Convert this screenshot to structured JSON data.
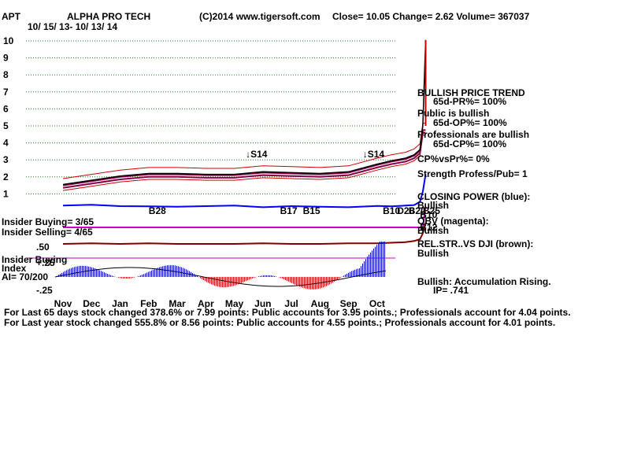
{
  "header": {
    "ticker": "APT",
    "company": "ALPHA PRO TECH",
    "copyright": "(C)2014 www.tigersoft.com",
    "stats": "Close= 10.05 Change= 2.62 Volume= 367037",
    "date_range": "10/ 15/ 13- 10/ 13/ 14"
  },
  "side_panel": [
    "BULLISH PRICE TREND",
    "65d-PR%= 100%",
    "Public is bullish",
    "65d-OP%= 100%",
    "Professionals are bullish",
    "65d-CP%= 100%",
    "CP%vsPr%= 0%",
    "Strength Profess/Pub= 1",
    "CLOSING POWER (blue):",
    "Bullish",
    "OBV (magenta):",
    "Bullish",
    "REL.STR..VS DJI (brown):",
    "Bullish",
    "Bullish: Accumulation Rising.",
    "IP= .741"
  ],
  "insider": {
    "buying": "Insider Buying= 3/65",
    "selling": "Insider Selling= 4/65",
    "index_line1": "Insider Buying",
    "index_line2": "Index",
    "ai": "AI= 70/200"
  },
  "footer": [
    "For Last 65 days stock changed 378.6% or 7.99 points: Public accounts for 3.95 points.; Professionals account for 4.04 points.",
    "For Last year stock changed 555.8% or 8.56 points: Public accounts for 4.55 points.; Professionals account for 4.01 points."
  ],
  "signals": [
    {
      "label": "S14",
      "arrow": "down",
      "month_pos": 6.4
    },
    {
      "label": "S14",
      "arrow": "down",
      "month_pos": 10.5
    },
    {
      "label": "B28",
      "arrow": "up",
      "month_pos": 3.0
    },
    {
      "label": "B17",
      "arrow": "up",
      "month_pos": 7.6
    },
    {
      "label": "B15",
      "arrow": "up",
      "month_pos": 8.4
    },
    {
      "label": "B10",
      "arrow": "up",
      "month_pos": 11.2
    },
    {
      "label": "D26",
      "arrow": "up",
      "month_pos": 11.7
    },
    {
      "label": "B20",
      "arrow": "up",
      "month_pos": 12.1
    },
    {
      "label": "B25",
      "arrow": "up",
      "month_pos": 12.6
    },
    {
      "label": "B10",
      "arrow": "up",
      "month_pos": 12.5
    },
    {
      "label": "B12",
      "arrow": "up",
      "month_pos": 12.5
    }
  ],
  "chart_data": {
    "type": "line",
    "title": "ALPHA PRO TECH",
    "price_ylim": [
      0,
      10
    ],
    "price_yticks": [
      "1",
      "2",
      "3",
      "4",
      "5",
      "6",
      "7",
      "8",
      "9",
      "10"
    ],
    "accum_yticks": [
      ".50",
      "+.25",
      "-.25"
    ],
    "months": [
      "Nov",
      "Dec",
      "Jan",
      "Feb",
      "Mar",
      "Apr",
      "May",
      "Jun",
      "Jul",
      "Aug",
      "Sep",
      "Oct"
    ],
    "grid": true,
    "series": [
      {
        "name": "Price",
        "color": "#000000",
        "x": [
          0,
          1,
          2,
          3,
          4,
          5,
          6,
          7,
          8,
          9,
          10,
          11,
          11.5,
          12,
          12.3,
          12.5,
          12.6,
          12.7
        ],
        "values": [
          1.55,
          1.8,
          2.05,
          2.2,
          2.2,
          2.15,
          2.15,
          2.3,
          2.25,
          2.2,
          2.3,
          2.75,
          2.95,
          3.1,
          3.3,
          3.6,
          5.0,
          10.05
        ]
      },
      {
        "name": "CLOSING POWER (blue)",
        "color": "#0000ff",
        "x": [
          0,
          1,
          2,
          3,
          4,
          5,
          6,
          7,
          8,
          9,
          10,
          11,
          11.5,
          12,
          12.3,
          12.5,
          12.6,
          12.7
        ],
        "values": [
          0.65,
          0.72,
          0.6,
          0.58,
          0.55,
          0.6,
          0.65,
          0.5,
          0.6,
          0.55,
          0.5,
          0.62,
          0.58,
          0.65,
          0.7,
          1.0,
          1.9,
          3.5
        ]
      },
      {
        "name": "OBV (magenta)",
        "color": "#cc00cc",
        "x": [
          0,
          12.6,
          12.7
        ],
        "values": [
          -0.3,
          -0.3,
          3.0
        ]
      },
      {
        "name": "REL.STR..VS DJI (brown)",
        "color": "#800000",
        "x": [
          0,
          1,
          2,
          3,
          4,
          5,
          6,
          7,
          8,
          9,
          10,
          11,
          11.5,
          12,
          12.3,
          12.5,
          12.6,
          12.7
        ],
        "values": [
          -0.9,
          -0.85,
          -0.9,
          -0.85,
          -0.9,
          -0.9,
          -0.9,
          -0.85,
          -0.9,
          -0.9,
          -0.85,
          -0.85,
          -0.8,
          -0.75,
          -0.65,
          -0.5,
          0.0,
          0.9
        ]
      }
    ]
  },
  "colors": {
    "price": "#000000",
    "closing_power": "#0000ff",
    "obv": "#cc00cc",
    "rel_strength": "#800000",
    "band_red": "#cc0000",
    "band_maroon": "#880044",
    "grid": "#228822",
    "accum_positive": "#0000cc",
    "accum_negative": "#cc0000"
  }
}
